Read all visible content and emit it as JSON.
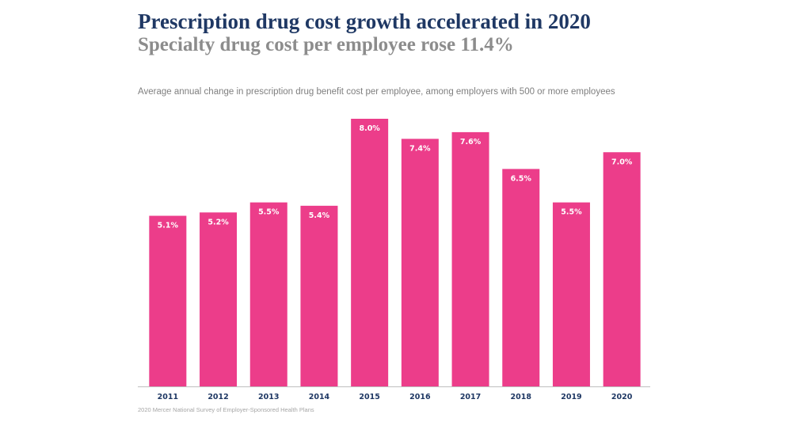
{
  "header": {
    "title": "Prescription drug cost growth accelerated in 2020",
    "subtitle": "Specialty drug cost per employee rose 11.4%",
    "caption": "Average annual change in prescription drug benefit cost per employee, among employers with 500 or more employees",
    "source": "2020 Mercer National Survey of Employer-Sponsored Health Plans"
  },
  "chart_data": {
    "type": "bar",
    "categories": [
      "2011",
      "2012",
      "2013",
      "2014",
      "2015",
      "2016",
      "2017",
      "2018",
      "2019",
      "2020"
    ],
    "values": [
      5.1,
      5.2,
      5.5,
      5.4,
      8.0,
      7.4,
      7.6,
      6.5,
      5.5,
      7.0
    ],
    "value_labels": [
      "5.1%",
      "5.2%",
      "5.5%",
      "5.4%",
      "8.0%",
      "7.4%",
      "7.6%",
      "6.5%",
      "5.5%",
      "7.0%"
    ],
    "ylim": [
      0,
      8.0
    ],
    "grid": false,
    "legend": "none",
    "colors": {
      "bar": "#ec3d8a",
      "axis": "#bfbfbf",
      "tick": "#1f3864",
      "bar_label": "#ffffff"
    }
  }
}
